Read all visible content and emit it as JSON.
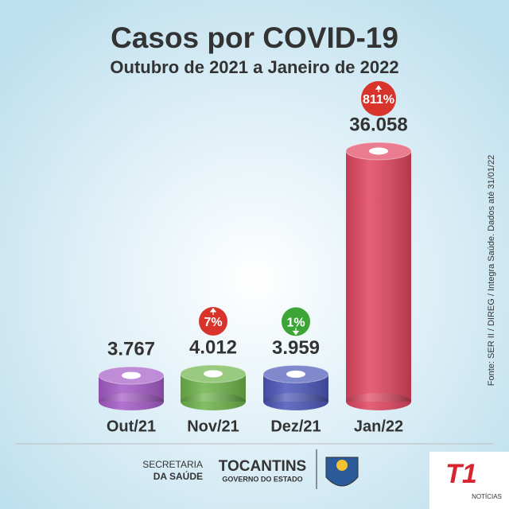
{
  "chart_data": {
    "type": "cylinder",
    "title": "Casos por COVID-19",
    "subtitle": "Outubro de 2021 a Janeiro de 2022",
    "categories": [
      "Out/21",
      "Nov/21",
      "Dez/21",
      "Jan/22"
    ],
    "values": [
      3767,
      4012,
      3959,
      36058
    ],
    "value_labels": [
      "3.767",
      "4.012",
      "3.959",
      "36.058"
    ],
    "colors": [
      "#a45bc6",
      "#6db34a",
      "#4b56b8",
      "#e0455f"
    ],
    "changes": [
      null,
      7,
      -1,
      811
    ],
    "change_labels": [
      null,
      "7%",
      "1%",
      "811%"
    ],
    "source": "Fonte: SER II / DIREG / Integra Saúde. Dados até 31/01/22"
  },
  "footer": {
    "secretaria": "SECRETARIA",
    "saude": "DA SAÚDE",
    "state": "TOCANTINS",
    "government": "GOVERNO DO ESTADO",
    "brand": "T1",
    "brand_sub": "NOTÍCIAS"
  }
}
